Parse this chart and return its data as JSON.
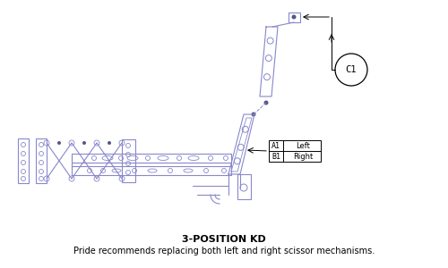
{
  "title": "3-POSITION KD",
  "subtitle": "Pride recommends replacing both left and right scissor mechanisms.",
  "title_fontsize": 8,
  "subtitle_fontsize": 7,
  "part_color": "#8888cc",
  "dark_color": "#555588",
  "bg_color": "#ffffff",
  "label_A1": "A1",
  "label_B1": "B1",
  "label_left": "Left",
  "label_right": "Right",
  "label_C1": "C1",
  "figw": 5.0,
  "figh": 3.0,
  "dpi": 100
}
